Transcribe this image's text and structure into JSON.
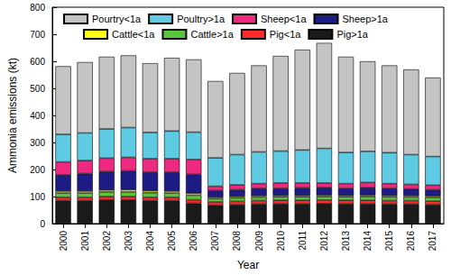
{
  "chart_data": {
    "type": "bar",
    "stacked": true,
    "grid": false,
    "legend": "top",
    "x_label": "Year",
    "y_label": "Ammonia emissions (kt)",
    "categories": [
      "2000",
      "2001",
      "2002",
      "2003",
      "2004",
      "2005",
      "2006",
      "2007",
      "2008",
      "2009",
      "2010",
      "2011",
      "2012",
      "2013",
      "2014",
      "2015",
      "2016",
      "2017"
    ],
    "ylim": [
      0,
      800
    ],
    "yticks": [
      0,
      100,
      200,
      300,
      400,
      500,
      600,
      700,
      800
    ],
    "series": [
      {
        "name": "Pig>1a",
        "color": "#1a1a1a",
        "values": [
          85,
          85,
          88,
          88,
          85,
          85,
          75,
          68,
          70,
          72,
          73,
          73,
          74,
          73,
          73,
          72,
          72,
          70
        ]
      },
      {
        "name": "Pig<1a",
        "color": "#ff2a2a",
        "values": [
          12,
          12,
          12,
          12,
          12,
          12,
          13,
          12,
          12,
          13,
          13,
          13,
          13,
          13,
          13,
          13,
          13,
          13
        ]
      },
      {
        "name": "Cattle>1a",
        "color": "#5ac43c",
        "values": [
          16,
          16,
          17,
          17,
          17,
          16,
          17,
          12,
          13,
          13,
          13,
          13,
          13,
          13,
          14,
          14,
          13,
          14
        ]
      },
      {
        "name": "Cattle<1a",
        "color": "#ffff1a",
        "values": [
          7,
          7,
          7,
          8,
          7,
          7,
          7,
          5,
          5,
          5,
          5,
          5,
          5,
          5,
          5,
          5,
          5,
          5
        ]
      },
      {
        "name": "Sheep>1a",
        "color": "#1c1c84",
        "values": [
          60,
          65,
          68,
          70,
          69,
          70,
          70,
          25,
          25,
          27,
          26,
          28,
          28,
          26,
          28,
          26,
          25,
          23
        ]
      },
      {
        "name": "Sheep<1a",
        "color": "#ee2a80",
        "values": [
          48,
          48,
          50,
          50,
          50,
          50,
          55,
          16,
          18,
          18,
          20,
          18,
          17,
          18,
          19,
          18,
          17,
          17
        ]
      },
      {
        "name": "Poultry>1a",
        "color": "#5fcbe3",
        "values": [
          102,
          102,
          108,
          110,
          97,
          102,
          101,
          105,
          112,
          117,
          118,
          122,
          128,
          115,
          115,
          114,
          110,
          106
        ]
      },
      {
        "name": "Pourtry<1a",
        "color": "#c4c4c4",
        "values": [
          252,
          262,
          267,
          267,
          256,
          271,
          269,
          284,
          302,
          320,
          352,
          371,
          390,
          354,
          333,
          323,
          315,
          292
        ]
      }
    ]
  }
}
